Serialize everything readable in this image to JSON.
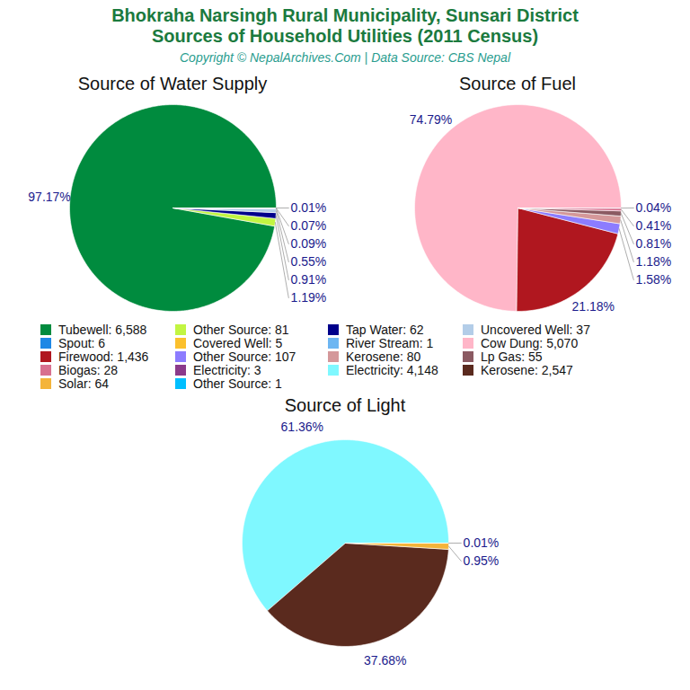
{
  "title": "Bhokraha Narsingh Rural Municipality, Sunsari District\nSources of Household Utilities (2011 Census)",
  "subtitle": "Copyright © NepalArchives.Com | Data Source: CBS Nepal",
  "chart_data": [
    {
      "type": "pie",
      "title": "Source of Water Supply",
      "categories": [
        "Tubewell: 6,588",
        "Other Source: 81",
        "Tap Water: 62",
        "Uncovered Well: 37",
        "Spout: 6",
        "Covered Well: 5",
        "River Stream: 1"
      ],
      "values": [
        97.17,
        1.19,
        0.91,
        0.55,
        0.09,
        0.07,
        0.01
      ],
      "value_labels": [
        "97.17%",
        "1.19%",
        "0.91%",
        "0.55%",
        "0.09%",
        "0.07%",
        "0.01%"
      ],
      "colors": [
        "#008b3e",
        "#c2f542",
        "#00008b",
        "#b3cde8",
        "#1e88e5",
        "#fbc02d",
        "#6db6f2"
      ],
      "data_labels": true,
      "legend": "bottom"
    },
    {
      "type": "pie",
      "title": "Source of Fuel",
      "categories": [
        "Cow Dung: 5,070",
        "Firewood: 1,436",
        "Other Source: 107",
        "Kerosene: 80",
        "Lp Gas: 55",
        "Biogas: 28",
        "Electricity: 3"
      ],
      "values": [
        74.79,
        21.18,
        1.58,
        1.18,
        0.81,
        0.41,
        0.04
      ],
      "value_labels": [
        "74.79%",
        "21.18%",
        "1.58%",
        "1.18%",
        "0.81%",
        "0.41%",
        "0.04%"
      ],
      "colors": [
        "#ffb6c8",
        "#b0171f",
        "#8c7cff",
        "#d4989a",
        "#8b5a62",
        "#d8708f",
        "#8b3a8b"
      ],
      "data_labels": true,
      "legend": "bottom"
    },
    {
      "type": "pie",
      "title": "Source of Light",
      "categories": [
        "Electricity: 4,148",
        "Kerosene: 2,547",
        "Solar: 64",
        "Other Source: 1"
      ],
      "values": [
        61.36,
        37.68,
        0.95,
        0.01
      ],
      "value_labels": [
        "61.36%",
        "37.68%",
        "0.95%",
        "0.01%"
      ],
      "colors": [
        "#7ff8ff",
        "#5a2a1e",
        "#f4b43a",
        "#00bfff"
      ],
      "data_labels": true,
      "legend": "bottom"
    }
  ]
}
